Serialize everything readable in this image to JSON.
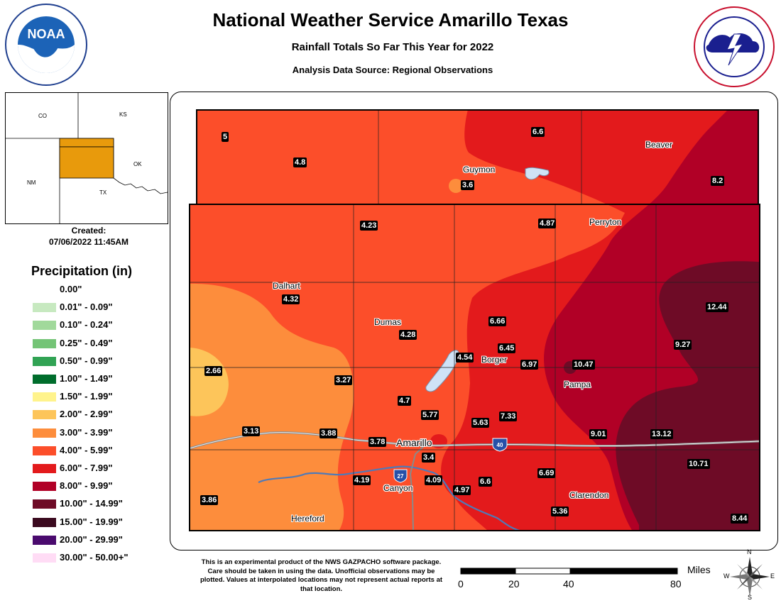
{
  "header": {
    "title": "National Weather Service Amarillo Texas",
    "subtitle": "Rainfall Totals So Far This Year for 2022",
    "source": "Analysis Data Source: Regional Observations"
  },
  "logos": {
    "left": "noaa-logo",
    "right": "nws-logo"
  },
  "inset_map": {
    "labels": [
      "CO",
      "KS",
      "NM",
      "OK",
      "TX"
    ],
    "highlight_color": "#e89a0c"
  },
  "created": {
    "label": "Created:",
    "date": "07/06/2022 11:45AM"
  },
  "legend": {
    "title": "Precipitation (in)",
    "items": [
      {
        "label": "0.00\"",
        "color": "#ffffff"
      },
      {
        "label": "0.01\" - 0.09\"",
        "color": "#c7e9c0"
      },
      {
        "label": "0.10\" - 0.24\"",
        "color": "#a1d99b"
      },
      {
        "label": "0.25\" - 0.49\"",
        "color": "#74c476"
      },
      {
        "label": "0.50\" - 0.99\"",
        "color": "#31a354"
      },
      {
        "label": "1.00\" - 1.49\"",
        "color": "#006d2c"
      },
      {
        "label": "1.50\" - 1.99\"",
        "color": "#fff38c"
      },
      {
        "label": "2.00\" - 2.99\"",
        "color": "#fdc55a"
      },
      {
        "label": "3.00\" - 3.99\"",
        "color": "#fd8d3c"
      },
      {
        "label": "4.00\" - 5.99\"",
        "color": "#fc4e2a"
      },
      {
        "label": "6.00\" - 7.99\"",
        "color": "#e31a1c"
      },
      {
        "label": "8.00\" - 9.99\"",
        "color": "#b10026"
      },
      {
        "label": "10.00\" - 14.99\"",
        "color": "#6e0b26"
      },
      {
        "label": "15.00\" - 19.99\"",
        "color": "#3b0a1f"
      },
      {
        "label": "20.00\" - 29.99\"",
        "color": "#4a0a6e"
      },
      {
        "label": "30.00\" - 50.00+\"",
        "color": "#ffdcf5"
      }
    ]
  },
  "map": {
    "towns": [
      "Guymon",
      "Beaver",
      "Perryton",
      "Dalhart",
      "Dumas",
      "Borger",
      "Pampa",
      "Amarillo",
      "Canyon",
      "Hereford",
      "Clarendon"
    ],
    "values": [
      "5",
      "4.8",
      "3.6",
      "6.6",
      "8.2",
      "4.23",
      "4.87",
      "4.32",
      "4.28",
      "6.66",
      "6.45",
      "4.54",
      "6.97",
      "10.47",
      "12.44",
      "9.27",
      "2.66",
      "3.27",
      "4.7",
      "5.77",
      "5.63",
      "7.33",
      "3.13",
      "3.88",
      "3.78",
      "3.4",
      "9.01",
      "13.12",
      "10.71",
      "4.19",
      "4.09",
      "4.97",
      "6.6",
      "6.69",
      "3.86",
      "5.36",
      "8.44"
    ],
    "shields": [
      "27",
      "40"
    ]
  },
  "disclaimer": "This is an experimental product of the NWS GAZPACHO software package. Care should be taken in using the data. Unofficial observations may be plotted. Values at interpolated locations may not represent actual reports at that location.",
  "scale": {
    "units": "Miles",
    "ticks": [
      "0",
      "20",
      "40",
      "80"
    ]
  },
  "compass": {
    "labels": [
      "N",
      "E",
      "S",
      "W"
    ]
  }
}
